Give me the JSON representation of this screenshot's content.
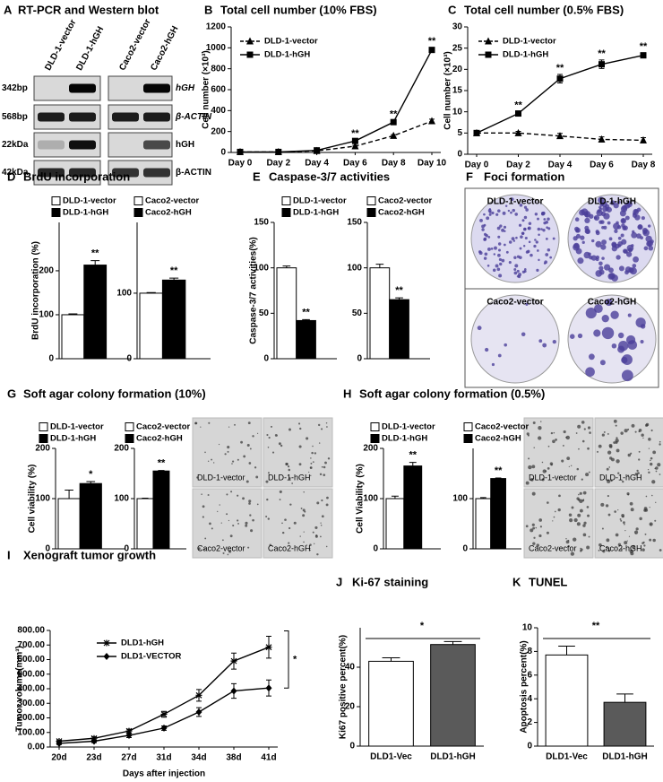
{
  "blot": {
    "panel": "A",
    "title": "RT-PCR and Western blot",
    "lanes": [
      "DLD-1-vector",
      "DLD-1-hGH",
      "Caco2-vector",
      "Caco2-hGH"
    ],
    "size_labels": [
      "342bp",
      "568bp",
      "22kDa",
      "42kDa"
    ],
    "target_labels": [
      "hGH",
      "β-ACTIN",
      "hGH",
      "β-ACTIN"
    ]
  },
  "foci": {
    "panel": "F",
    "title": "Foci formation",
    "labels": [
      "DLD-1-vector",
      "DLD-1-hGH",
      "Caco2-vector",
      "Caco2-hGH"
    ]
  },
  "agar_images": [
    {
      "labels": [
        "DLD-1-vector",
        "DLD-1-hGH",
        "Caco2-vector",
        "Caco2-hGH"
      ]
    },
    {
      "labels": [
        "DLD-1-vector",
        "DLD-1-hGH",
        "Caco2-vector",
        "Caco2-hGH"
      ]
    }
  ],
  "chart_data": [
    {
      "type": "line",
      "panel": "B",
      "title": "Total cell number (10% FBS)",
      "ylabel": "Cell number (×10³)",
      "categories": [
        "Day 0",
        "Day 2",
        "Day 4",
        "Day 6",
        "Day 8",
        "Day 10"
      ],
      "series": [
        {
          "name": "DLD-1-vector",
          "color": "#000000",
          "dash": true,
          "marker": "triangle",
          "values": [
            5,
            5,
            15,
            60,
            160,
            300
          ],
          "errors": [
            1,
            1,
            3,
            8,
            10,
            18
          ]
        },
        {
          "name": "DLD-1-hGH",
          "color": "#000000",
          "dash": false,
          "marker": "square",
          "values": [
            5,
            5,
            20,
            110,
            290,
            980
          ],
          "errors": [
            1,
            1,
            4,
            10,
            15,
            20
          ]
        }
      ],
      "significance": [
        null,
        null,
        null,
        "**",
        "**",
        "**"
      ],
      "ylim": [
        0,
        1200
      ],
      "yticks": [
        0,
        200,
        400,
        600,
        800,
        1000,
        1200
      ],
      "grid": false
    },
    {
      "type": "line",
      "panel": "C",
      "title": "Total cell number (0.5% FBS)",
      "ylabel": "Cell number (×10³)",
      "categories": [
        "Day 0",
        "Day 2",
        "Day 4",
        "Day 6",
        "Day 8"
      ],
      "series": [
        {
          "name": "DLD-1-vector",
          "color": "#000000",
          "dash": true,
          "marker": "triangle",
          "values": [
            5,
            5,
            4.3,
            3.5,
            3.3
          ],
          "errors": [
            0.3,
            0.4,
            0.6,
            0.6,
            0.6
          ]
        },
        {
          "name": "DLD-1-hGH",
          "color": "#000000",
          "dash": false,
          "marker": "square",
          "values": [
            5,
            9.6,
            17.8,
            21.2,
            23.3
          ],
          "errors": [
            0.3,
            0.4,
            1,
            1,
            0.6
          ]
        }
      ],
      "significance": [
        null,
        "**",
        "**",
        "**",
        "**"
      ],
      "ylim": [
        0,
        30
      ],
      "yticks": [
        0,
        5,
        10,
        15,
        20,
        25,
        30
      ],
      "grid": false
    },
    {
      "type": "bar",
      "panel": "D",
      "title": "BrdU incorporation",
      "ylabel": "BrdU incorporation (%)",
      "series": [
        {
          "name": "DLD-1-vector",
          "color": "#ffffff",
          "values": [
            100
          ],
          "errors": [
            2
          ]
        },
        {
          "name": "DLD-1-hGH",
          "color": "#000000",
          "values": [
            213
          ],
          "errors": [
            10
          ]
        }
      ],
      "significance": "**",
      "ylim": [
        0,
        310
      ],
      "yticks": [
        0,
        100,
        200
      ],
      "grid": false
    },
    {
      "type": "bar",
      "series": [
        {
          "name": "Caco2-vector",
          "color": "#ffffff",
          "values": [
            100
          ],
          "errors": [
            1
          ]
        },
        {
          "name": "Caco2-hGH",
          "color": "#000000",
          "values": [
            120
          ],
          "errors": [
            3
          ]
        }
      ],
      "significance": "**",
      "ylim": [
        0,
        208
      ],
      "yticks": [
        0,
        100
      ],
      "grid": false
    },
    {
      "type": "bar",
      "panel": "E",
      "title": "Caspase-3/7 activities",
      "ylabel": "Caspase-3/7 activities(%)",
      "series": [
        {
          "name": "DLD-1-vector",
          "color": "#ffffff",
          "values": [
            100
          ],
          "errors": [
            2
          ]
        },
        {
          "name": "DLD-1-hGH",
          "color": "#000000",
          "values": [
            42
          ],
          "errors": [
            1
          ]
        }
      ],
      "significance": "**",
      "ylim": [
        0,
        150
      ],
      "yticks": [
        0,
        50,
        100,
        150
      ],
      "grid": false
    },
    {
      "type": "bar",
      "series": [
        {
          "name": "Caco2-vector",
          "color": "#ffffff",
          "values": [
            100
          ],
          "errors": [
            4
          ]
        },
        {
          "name": "Caco2-hGH",
          "color": "#000000",
          "values": [
            65
          ],
          "errors": [
            2
          ]
        }
      ],
      "significance": "**",
      "ylim": [
        0,
        150
      ],
      "yticks": [
        0,
        50,
        100,
        150
      ],
      "grid": false
    },
    {
      "type": "bar",
      "panel": "G",
      "title": "Soft agar colony formation (10%)",
      "ylabel": "Cell viability (%)",
      "series": [
        {
          "name": "DLD-1-vector",
          "color": "#ffffff",
          "values": [
            100
          ],
          "errors": [
            17
          ]
        },
        {
          "name": "DLD-1-hGH",
          "color": "#000000",
          "values": [
            130
          ],
          "errors": [
            4
          ]
        }
      ],
      "significance": "*",
      "ylim": [
        0,
        200
      ],
      "yticks": [
        0,
        100,
        200
      ],
      "grid": false
    },
    {
      "type": "bar",
      "series": [
        {
          "name": "Caco2-vector",
          "color": "#ffffff",
          "values": [
            100
          ],
          "errors": [
            1
          ]
        },
        {
          "name": "Caco2-hGH",
          "color": "#000000",
          "values": [
            155
          ],
          "errors": [
            1
          ]
        }
      ],
      "significance": "**",
      "ylim": [
        0,
        200
      ],
      "yticks": [
        0,
        100,
        200
      ],
      "grid": false
    },
    {
      "type": "bar",
      "panel": "H",
      "title": "Soft agar colony formation (0.5%)",
      "ylabel": "Cell Viability (%)",
      "series": [
        {
          "name": "DLD-1-vector",
          "color": "#ffffff",
          "values": [
            100
          ],
          "errors": [
            5
          ]
        },
        {
          "name": "DLD-1-hGH",
          "color": "#000000",
          "values": [
            165
          ],
          "errors": [
            7
          ]
        }
      ],
      "significance": "**",
      "ylim": [
        0,
        200
      ],
      "yticks": [
        0,
        100,
        200
      ],
      "grid": false
    },
    {
      "type": "bar",
      "series": [
        {
          "name": "Caco2-vector",
          "color": "#ffffff",
          "values": [
            100
          ],
          "errors": [
            2
          ]
        },
        {
          "name": "Caco2-hGH",
          "color": "#000000",
          "values": [
            140
          ],
          "errors": [
            1
          ]
        }
      ],
      "significance": "**",
      "ylim": [
        0,
        200
      ],
      "yticks": [
        0,
        100
      ],
      "grid": false
    },
    {
      "type": "line",
      "panel": "I",
      "title": "Xenograft tumor growth",
      "ylabel": "Tumor volume(mm³)",
      "xlabel": "Days after injection",
      "categories": [
        "20d",
        "23d",
        "27d",
        "31d",
        "34d",
        "38d",
        "41d"
      ],
      "series": [
        {
          "name": "DLD1-hGH",
          "color": "#000000",
          "dash": false,
          "marker": "asterisk",
          "values": [
            40,
            60,
            110,
            225,
            355,
            590,
            685
          ],
          "errors": [
            8,
            10,
            12,
            20,
            40,
            55,
            75
          ]
        },
        {
          "name": "DLD1-VECTOR",
          "color": "#000000",
          "dash": false,
          "marker": "diamond",
          "values": [
            25,
            40,
            80,
            130,
            240,
            385,
            405
          ],
          "errors": [
            8,
            10,
            15,
            15,
            30,
            50,
            55
          ]
        }
      ],
      "significance": "*",
      "ylim": [
        0,
        800
      ],
      "yticks": [
        {
          "value": 0,
          "label": "0.00"
        },
        {
          "value": 100,
          "label": "100.00"
        },
        {
          "value": 200,
          "label": "200.00"
        },
        {
          "value": 300,
          "label": "300.00"
        },
        {
          "value": 400,
          "label": "400.00"
        },
        {
          "value": 500,
          "label": "500.00"
        },
        {
          "value": 600,
          "label": "600.00"
        },
        {
          "value": 700,
          "label": "700.00"
        },
        {
          "value": 800,
          "label": "800.00"
        }
      ],
      "grid": false
    },
    {
      "type": "bar",
      "panel": "J",
      "title": "Ki-67 staining",
      "ylabel": "Ki67 positive percent(%)",
      "categories": [
        "DLD1-Vec",
        "DLD1-hGH"
      ],
      "values": [
        43,
        51.5
      ],
      "errors": [
        1.8,
        1.5
      ],
      "colors": [
        "#ffffff",
        "#5a5a5a"
      ],
      "significance": "*",
      "ylim": [
        0,
        60
      ],
      "yticks": [
        0,
        20,
        40
      ],
      "grid": false
    },
    {
      "type": "bar",
      "panel": "K",
      "title": "TUNEL",
      "ylabel": "Apoptosis percent(%)",
      "categories": [
        "DLD1-Vec",
        "DLD1-hGH"
      ],
      "values": [
        7.7,
        3.7
      ],
      "errors": [
        0.75,
        0.7
      ],
      "colors": [
        "#ffffff",
        "#5a5a5a"
      ],
      "significance": "**",
      "ylim": [
        0,
        10
      ],
      "yticks": [
        0,
        2,
        4,
        6,
        8,
        10
      ],
      "grid": false
    }
  ]
}
